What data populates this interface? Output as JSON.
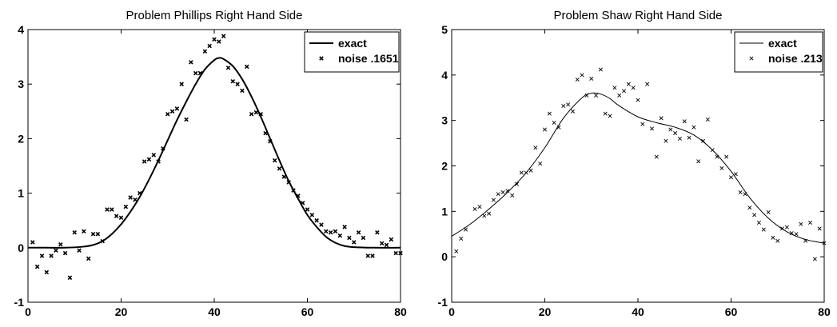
{
  "chart_data": [
    {
      "type": "line",
      "title": "Problem Phillips Right Hand Side",
      "xlabel": "",
      "ylabel": "",
      "xlim": [
        0,
        80
      ],
      "ylim": [
        -1,
        4
      ],
      "xticks": [
        0,
        20,
        40,
        60,
        80
      ],
      "yticks": [
        -1,
        0,
        1,
        2,
        3,
        4
      ],
      "grid": false,
      "legend_position": "top-right",
      "line_weight": "bold",
      "series": [
        {
          "name": "exact",
          "style": "line",
          "x": [
            0,
            4,
            8,
            12,
            14,
            16,
            18,
            20,
            22,
            24,
            26,
            28,
            30,
            32,
            34,
            36,
            38,
            40,
            41,
            42,
            44,
            46,
            48,
            50,
            52,
            54,
            56,
            58,
            60,
            62,
            64,
            66,
            68,
            70,
            74,
            80
          ],
          "y": [
            0,
            0,
            0,
            0.02,
            0.05,
            0.12,
            0.25,
            0.43,
            0.66,
            0.93,
            1.25,
            1.6,
            1.97,
            2.34,
            2.68,
            3.0,
            3.27,
            3.44,
            3.48,
            3.46,
            3.33,
            3.09,
            2.77,
            2.4,
            2.0,
            1.6,
            1.22,
            0.9,
            0.6,
            0.38,
            0.2,
            0.09,
            0.03,
            0.01,
            0,
            0
          ]
        },
        {
          "name": "noise .1651",
          "style": "x-marker",
          "x": [
            1,
            2,
            3,
            4,
            5,
            6,
            7,
            8,
            9,
            10,
            11,
            12,
            13,
            14,
            15,
            16,
            17,
            18,
            19,
            20,
            21,
            22,
            23,
            24,
            25,
            26,
            27,
            28,
            29,
            30,
            31,
            32,
            33,
            34,
            35,
            36,
            37,
            38,
            39,
            40,
            41,
            42,
            43,
            44,
            45,
            46,
            47,
            48,
            49,
            50,
            51,
            52,
            53,
            54,
            55,
            56,
            57,
            58,
            59,
            60,
            61,
            62,
            63,
            64,
            65,
            66,
            67,
            68,
            69,
            70,
            71,
            72,
            73,
            74,
            75,
            76,
            77,
            78,
            79,
            80
          ],
          "y": [
            0.1,
            -0.35,
            -0.15,
            -0.45,
            -0.15,
            -0.05,
            0.06,
            -0.1,
            -0.55,
            0.28,
            -0.05,
            0.3,
            -0.2,
            0.25,
            0.25,
            0.12,
            0.7,
            0.7,
            0.58,
            0.55,
            0.75,
            0.92,
            0.88,
            1.0,
            1.58,
            1.62,
            1.7,
            1.58,
            1.82,
            2.45,
            2.5,
            2.55,
            3.0,
            2.35,
            3.4,
            3.2,
            3.2,
            3.6,
            3.7,
            3.82,
            3.78,
            3.88,
            3.3,
            3.05,
            3.0,
            2.88,
            3.32,
            2.45,
            2.48,
            2.45,
            2.1,
            1.95,
            1.6,
            1.45,
            1.3,
            1.2,
            1.05,
            0.95,
            0.82,
            0.7,
            0.6,
            0.5,
            0.42,
            0.3,
            0.28,
            0.3,
            0.22,
            0.38,
            0.18,
            0.1,
            0.28,
            0.18,
            -0.15,
            -0.15,
            0.28,
            0.08,
            0.05,
            0.15,
            -0.1,
            -0.1
          ]
        }
      ]
    },
    {
      "type": "line",
      "title": "Problem Shaw Right Hand Side",
      "xlabel": "",
      "ylabel": "",
      "xlim": [
        0,
        80
      ],
      "ylim": [
        -1,
        5
      ],
      "xticks": [
        0,
        20,
        40,
        60,
        80
      ],
      "yticks": [
        -1,
        0,
        1,
        2,
        3,
        4,
        5
      ],
      "grid": false,
      "legend_position": "top-right",
      "line_weight": "thin",
      "series": [
        {
          "name": "exact",
          "style": "line",
          "x": [
            0,
            4,
            8,
            12,
            16,
            20,
            24,
            28,
            30,
            32,
            34,
            36,
            40,
            44,
            48,
            52,
            56,
            60,
            64,
            68,
            72,
            76,
            80
          ],
          "y": [
            0.45,
            0.72,
            1.05,
            1.42,
            1.85,
            2.4,
            3.05,
            3.5,
            3.6,
            3.58,
            3.48,
            3.32,
            3.08,
            2.95,
            2.85,
            2.68,
            2.35,
            1.88,
            1.3,
            0.85,
            0.55,
            0.38,
            0.3
          ]
        },
        {
          "name": "noise .213",
          "style": "x-marker",
          "x": [
            1,
            2,
            3,
            5,
            6,
            7,
            8,
            9,
            10,
            11,
            12,
            13,
            14,
            15,
            16,
            17,
            18,
            19,
            20,
            21,
            22,
            23,
            24,
            25,
            26,
            27,
            28,
            29,
            30,
            31,
            32,
            33,
            34,
            35,
            36,
            37,
            38,
            39,
            40,
            41,
            42,
            43,
            44,
            45,
            46,
            47,
            48,
            49,
            50,
            51,
            52,
            53,
            54,
            55,
            56,
            57,
            58,
            59,
            60,
            61,
            62,
            63,
            64,
            65,
            66,
            67,
            68,
            69,
            70,
            71,
            72,
            73,
            74,
            75,
            76,
            77,
            78,
            79,
            80
          ],
          "y": [
            0.12,
            0.4,
            0.6,
            1.05,
            1.1,
            0.9,
            0.95,
            1.25,
            1.38,
            1.42,
            1.45,
            1.35,
            1.6,
            1.85,
            1.85,
            1.9,
            2.4,
            2.05,
            2.8,
            3.15,
            2.95,
            2.85,
            3.32,
            3.35,
            3.2,
            3.9,
            4.0,
            3.55,
            3.92,
            3.55,
            4.12,
            3.15,
            3.1,
            3.72,
            3.55,
            3.65,
            3.8,
            3.72,
            3.45,
            2.92,
            3.8,
            2.82,
            2.2,
            3.05,
            2.55,
            2.8,
            2.72,
            2.6,
            2.98,
            2.62,
            2.85,
            2.1,
            2.55,
            3.02,
            2.35,
            2.2,
            1.95,
            2.2,
            1.75,
            1.82,
            1.42,
            1.38,
            1.08,
            0.92,
            0.75,
            0.6,
            0.98,
            0.42,
            0.35,
            0.62,
            0.65,
            0.52,
            0.5,
            0.72,
            0.35,
            0.75,
            -0.05,
            0.62,
            0.3
          ]
        }
      ]
    }
  ]
}
